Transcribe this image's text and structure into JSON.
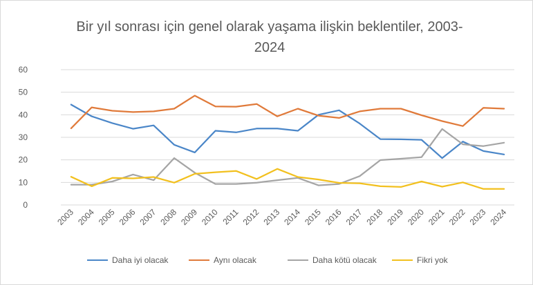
{
  "chart_data": {
    "type": "line",
    "title": "Bir yıl sonrası için genel olarak yaşama ilişkin beklentiler, 2003-2024",
    "title_lines": [
      "Bir yıl sonrası için genel olarak yaşama ilişkin beklentiler, 2003-",
      "2024"
    ],
    "x": [
      "2003",
      "2004",
      "2005",
      "2006",
      "2007",
      "2008",
      "2009",
      "2010",
      "2011",
      "2012",
      "2013",
      "2014",
      "2015",
      "2016",
      "2017",
      "2018",
      "2019",
      "2020",
      "2021",
      "2022",
      "2023",
      "2024"
    ],
    "yticks": [
      0,
      10,
      20,
      30,
      40,
      50,
      60
    ],
    "ylim": [
      0,
      60
    ],
    "grid": true,
    "legend_position": "bottom",
    "series": [
      {
        "name": "Daha iyi olacak",
        "color": "#4a86c8",
        "values": [
          44.5,
          39.3,
          36.3,
          33.8,
          35.3,
          26.7,
          23.3,
          32.9,
          32.2,
          33.9,
          33.9,
          32.9,
          40.0,
          42.0,
          36.1,
          29.2,
          29.1,
          28.9,
          20.8,
          28.1,
          23.9,
          22.4
        ]
      },
      {
        "name": "Aynı olacak",
        "color": "#e07a3a",
        "values": [
          34.0,
          43.3,
          41.8,
          41.2,
          41.5,
          42.7,
          48.5,
          43.7,
          43.6,
          44.8,
          39.3,
          42.7,
          39.6,
          38.6,
          41.5,
          42.7,
          42.7,
          39.8,
          37.2,
          35.0,
          43.1,
          42.7
        ]
      },
      {
        "name": "Daha kötü olacak",
        "color": "#a5a5a5",
        "values": [
          9.0,
          9.0,
          10.4,
          13.5,
          11.0,
          20.8,
          14.3,
          9.3,
          9.3,
          9.9,
          11.0,
          12.0,
          8.7,
          9.3,
          12.8,
          19.9,
          20.5,
          21.2,
          33.7,
          26.9,
          26.1,
          27.6
        ]
      },
      {
        "name": "Fikri yok",
        "color": "#f2c01e",
        "values": [
          12.5,
          8.3,
          12.0,
          11.8,
          12.4,
          9.9,
          13.8,
          14.5,
          15.1,
          11.5,
          16.0,
          12.4,
          11.3,
          9.8,
          9.6,
          8.3,
          8.0,
          10.4,
          8.1,
          10.0,
          7.1,
          7.1
        ]
      }
    ]
  }
}
